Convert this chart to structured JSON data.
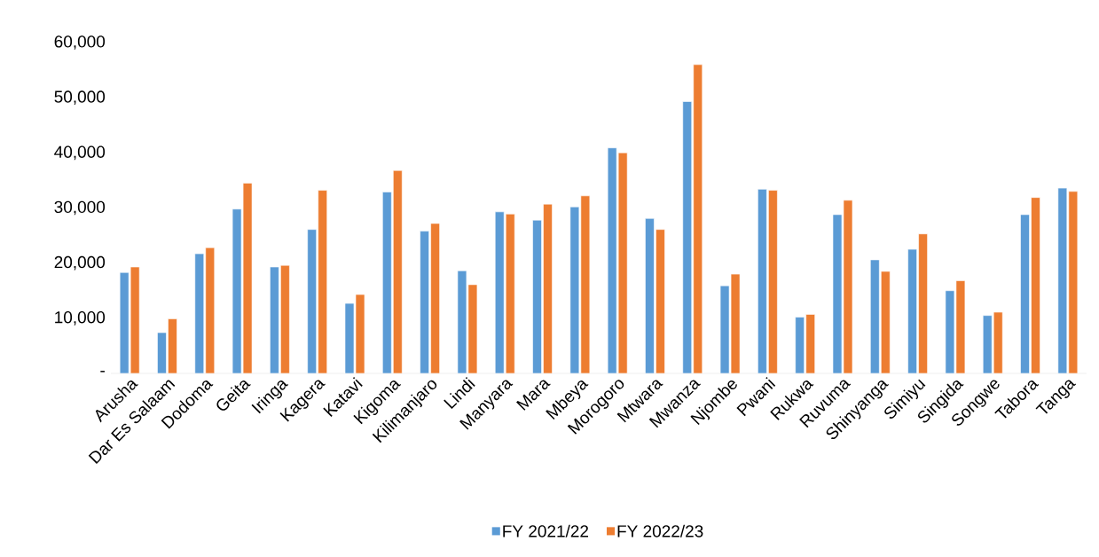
{
  "chart_data": {
    "type": "bar",
    "categories": [
      "Arusha",
      "Dar Es Salaam",
      "Dodoma",
      "Geita",
      "Iringa",
      "Kagera",
      "Katavi",
      "Kigoma",
      "Kilimanjaro",
      "Lindi",
      "Manyara",
      "Mara",
      "Mbeya",
      "Morogoro",
      "Mtwara",
      "Mwanza",
      "Njombe",
      "Pwani",
      "Rukwa",
      "Ruvuma",
      "Shinyanga",
      "Simiyu",
      "Singida",
      "Songwe",
      "Tabora",
      "Tanga"
    ],
    "series": [
      {
        "name": "FY 2021/22",
        "color": "#5b9bd5",
        "values": [
          18300,
          7400,
          21700,
          29800,
          19300,
          26100,
          12700,
          32900,
          25800,
          18600,
          29300,
          27800,
          30200,
          40900,
          28100,
          49300,
          15900,
          33400,
          10200,
          28800,
          20600,
          22500,
          15000,
          10500,
          28800,
          33600
        ]
      },
      {
        "name": "FY 2022/23",
        "color": "#ed7d31",
        "values": [
          19300,
          9900,
          22800,
          34500,
          19600,
          33200,
          14300,
          36800,
          27200,
          16100,
          28900,
          30700,
          32200,
          40000,
          26100,
          56000,
          18000,
          33200,
          10700,
          31400,
          18500,
          25300,
          16800,
          11100,
          31900,
          33000
        ]
      }
    ],
    "ylim": [
      0,
      60000
    ],
    "yticks": [
      {
        "value": 0,
        "label": "-"
      },
      {
        "value": 10000,
        "label": "10,000"
      },
      {
        "value": 20000,
        "label": "20,000"
      },
      {
        "value": 30000,
        "label": "30,000"
      },
      {
        "value": 40000,
        "label": "40,000"
      },
      {
        "value": 50000,
        "label": "50,000"
      },
      {
        "value": 60000,
        "label": "60,000"
      }
    ],
    "legend": "bottom"
  }
}
